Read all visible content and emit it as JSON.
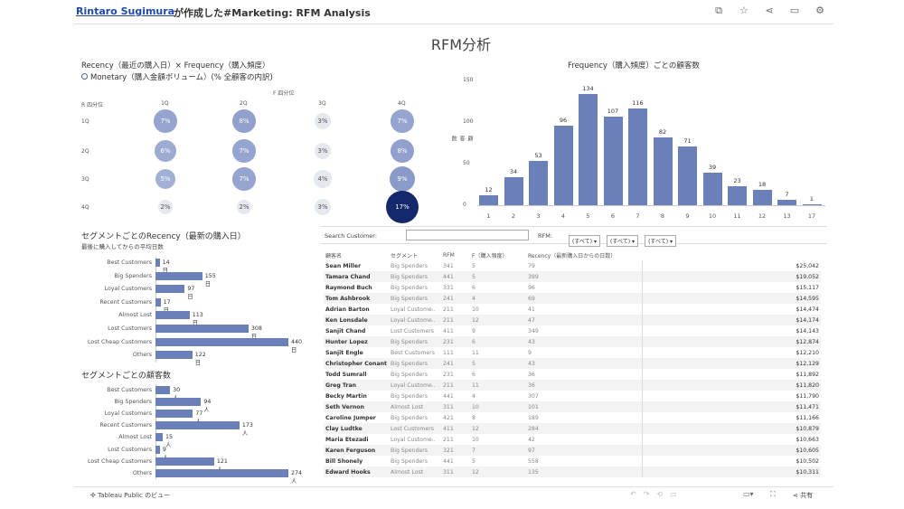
{
  "topbar": {
    "author": "Rintaro Sugimura",
    "made_by": "が作成した#Marketing: RFM Analysis",
    "icons": [
      "copy-icon",
      "star-icon",
      "share-icon",
      "comment-icon",
      "settings-icon"
    ]
  },
  "page_title": "RFM分析",
  "matrix": {
    "title1": "Recency（最近の購入日）× Frequency（購入頻度）",
    "title2": "Monetary（購入金額ボリューム）(% 全顧客の内訳)",
    "f_header": "F 四分位",
    "r_header": "R 四分位",
    "cols": [
      "1Q",
      "2Q",
      "3Q",
      "4Q"
    ],
    "rows": [
      "1Q",
      "2Q",
      "3Q",
      "4Q"
    ],
    "cells": [
      [
        {
          "v": 7,
          "label": "7%"
        },
        {
          "v": 8,
          "label": "8%"
        },
        {
          "v": 3,
          "label": "3%"
        },
        {
          "v": 7,
          "label": "7%"
        }
      ],
      [
        {
          "v": 6,
          "label": "6%"
        },
        {
          "v": 7,
          "label": "7%"
        },
        {
          "v": 3,
          "label": "3%"
        },
        {
          "v": 8,
          "label": "8%"
        }
      ],
      [
        {
          "v": 5,
          "label": "5%"
        },
        {
          "v": 7,
          "label": "7%"
        },
        {
          "v": 4,
          "label": "4%"
        },
        {
          "v": 9,
          "label": "9%"
        }
      ],
      [
        {
          "v": 2,
          "label": "2%"
        },
        {
          "v": 2,
          "label": "2%"
        },
        {
          "v": 3,
          "label": "3%"
        },
        {
          "v": 17,
          "label": "17%"
        }
      ]
    ]
  },
  "chart_data": [
    {
      "type": "bar",
      "title": "Frequency（購入頻度）ごとの顧客数",
      "ylabel": "顧客数",
      "categories": [
        "1",
        "2",
        "3",
        "4",
        "5",
        "6",
        "7",
        "8",
        "9",
        "10",
        "11",
        "12",
        "13",
        "17"
      ],
      "values": [
        12,
        34,
        53,
        96,
        134,
        107,
        116,
        82,
        71,
        39,
        23,
        18,
        7,
        1
      ],
      "ylim": [
        0,
        150
      ],
      "yticks": [
        "150",
        "100",
        "50",
        "0"
      ]
    },
    {
      "type": "bar",
      "title": "セグメントごとのRecency（最新の購入日）",
      "subtitle": "最後に購入してからの平均日数",
      "categories": [
        "Best Customers",
        "Big Spenders",
        "Loyal Customers",
        "Recent Customers",
        "Almost Lost",
        "Lost Customers",
        "Lost Cheap Customers",
        "Others"
      ],
      "values": [
        14,
        155,
        97,
        17,
        113,
        308,
        440,
        122
      ],
      "labels": [
        "14日",
        "155日",
        "97日",
        "17日",
        "113日",
        "308日",
        "440日",
        "122日"
      ]
    },
    {
      "type": "bar",
      "title": "セグメントごとの顧客数",
      "categories": [
        "Best Customers",
        "Big Spenders",
        "Loyal Customers",
        "Recent Customers",
        "Almost Lost",
        "Lost Customers",
        "Lost Cheap Customers",
        "Others"
      ],
      "values": [
        30,
        94,
        77,
        173,
        15,
        9,
        121,
        274
      ],
      "labels": [
        "30人",
        "94人",
        "77人",
        "173人",
        "15人",
        "9人",
        "121人",
        "274人"
      ]
    }
  ],
  "filters": {
    "search_label": "Search Customer:",
    "search_value": "",
    "rfm_label": "RFM:",
    "dropdowns": [
      "(すべて)",
      "(すべて)",
      "(すべて)"
    ]
  },
  "table": {
    "headers": [
      "顧客名",
      "セグメント",
      "RFM",
      "F（購入頻度）",
      "Recency（最新購入日からの日数）",
      ""
    ],
    "rows": [
      [
        "Sean Miller",
        "Big Spenders",
        "341",
        "5",
        "79",
        "$25,042"
      ],
      [
        "Tamara Chand",
        "Big Spenders",
        "441",
        "5",
        "399",
        "$19,052"
      ],
      [
        "Raymond Buch",
        "Big Spenders",
        "331",
        "6",
        "96",
        "$15,117"
      ],
      [
        "Tom Ashbrook",
        "Big Spenders",
        "241",
        "4",
        "69",
        "$14,595"
      ],
      [
        "Adrian Barton",
        "Loyal Custome..",
        "211",
        "10",
        "41",
        "$14,474"
      ],
      [
        "Ken Lonsdale",
        "Loyal Custome..",
        "211",
        "12",
        "47",
        "$14,174"
      ],
      [
        "Sanjit Chand",
        "Lost Customers",
        "411",
        "9",
        "349",
        "$14,143"
      ],
      [
        "Hunter Lopez",
        "Big Spenders",
        "231",
        "6",
        "43",
        "$12,874"
      ],
      [
        "Sanjit Engle",
        "Best Customers",
        "111",
        "11",
        "9",
        "$12,210"
      ],
      [
        "Christopher Conant",
        "Big Spenders",
        "241",
        "5",
        "43",
        "$12,129"
      ],
      [
        "Todd Sumrall",
        "Big Spenders",
        "231",
        "6",
        "36",
        "$11,892"
      ],
      [
        "Greg Tran",
        "Loyal Custome..",
        "211",
        "11",
        "36",
        "$11,820"
      ],
      [
        "Becky Martin",
        "Big Spenders",
        "441",
        "4",
        "307",
        "$11,790"
      ],
      [
        "Seth Vernon",
        "Almost Lost",
        "311",
        "10",
        "101",
        "$11,471"
      ],
      [
        "Caroline Jumper",
        "Big Spenders",
        "421",
        "8",
        "189",
        "$11,166"
      ],
      [
        "Clay Ludtke",
        "Lost Customers",
        "411",
        "12",
        "284",
        "$10,879"
      ],
      [
        "Maria Etezadi",
        "Loyal Custome..",
        "211",
        "10",
        "42",
        "$10,663"
      ],
      [
        "Karen Ferguson",
        "Big Spenders",
        "321",
        "7",
        "97",
        "$10,605"
      ],
      [
        "Bill Shonely",
        "Big Spenders",
        "441",
        "5",
        "558",
        "$10,502"
      ],
      [
        "Edward Hooks",
        "Almost Lost",
        "311",
        "12",
        "135",
        "$10,311"
      ]
    ]
  },
  "footer": {
    "tableau": "Tableau Public のビュー",
    "share": "共有"
  }
}
